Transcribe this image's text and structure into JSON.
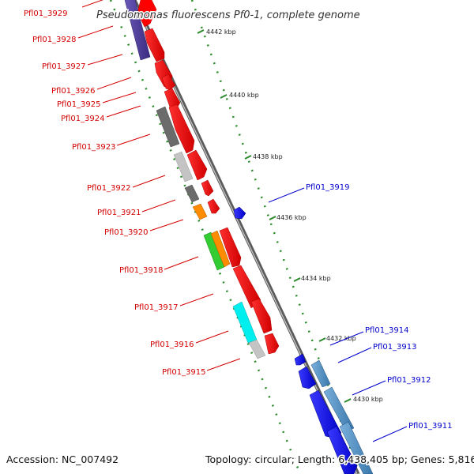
{
  "title": "Pseudomonas fluorescens Pf0-1, complete genome",
  "footer": {
    "accession": "Accession: NC_007492",
    "summary": "Topology: circular; Length: 6,438,405 bp; Genes: 5,816"
  },
  "scale_ticks": [
    {
      "kbp": 4442,
      "label": "4442 kbp"
    },
    {
      "kbp": 4440,
      "label": "4440 kbp"
    },
    {
      "kbp": 4438,
      "label": "4438 kbp"
    },
    {
      "kbp": 4436,
      "label": "4436 kbp"
    },
    {
      "kbp": 4434,
      "label": "4434 kbp"
    },
    {
      "kbp": 4432,
      "label": "4432 kbp"
    },
    {
      "kbp": 4430,
      "label": "4430 kbp"
    }
  ],
  "colors": {
    "forward_label": "#d40000",
    "reverse_label": "#0000cc",
    "backbone": "#7a7a7a",
    "dots": "#2a8a2a"
  },
  "forward_labels": [
    {
      "id": "fwd-3929",
      "text": "Pfl01_3929"
    },
    {
      "id": "fwd-3928",
      "text": "Pfl01_3928"
    },
    {
      "id": "fwd-3927",
      "text": "Pfl01_3927"
    },
    {
      "id": "fwd-3926",
      "text": "Pfl01_3926"
    },
    {
      "id": "fwd-3925",
      "text": "Pfl01_3925"
    },
    {
      "id": "fwd-3924",
      "text": "Pfl01_3924"
    },
    {
      "id": "fwd-3923",
      "text": "Pfl01_3923"
    },
    {
      "id": "fwd-3922",
      "text": "Pfl01_3922"
    },
    {
      "id": "fwd-3921",
      "text": "Pfl01_3921"
    },
    {
      "id": "fwd-3920",
      "text": "Pfl01_3920"
    },
    {
      "id": "fwd-3918",
      "text": "Pfl01_3918"
    },
    {
      "id": "fwd-3917",
      "text": "Pfl01_3917"
    },
    {
      "id": "fwd-3916",
      "text": "Pfl01_3916"
    },
    {
      "id": "fwd-3915",
      "text": "Pfl01_3915"
    }
  ],
  "reverse_labels": [
    {
      "id": "rev-3919",
      "text": "Pfl01_3919"
    },
    {
      "id": "rev-3914",
      "text": "Pfl01_3914"
    },
    {
      "id": "rev-3913",
      "text": "Pfl01_3913"
    },
    {
      "id": "rev-3912",
      "text": "Pfl01_3912"
    },
    {
      "id": "rev-3911",
      "text": "Pfl01_3911"
    }
  ],
  "feature_colors": {
    "red": "#ff0000",
    "navy": "#4b3a96",
    "dark_gray": "#6b6b6b",
    "light_gray": "#c4c4c4",
    "orange": "#ff8c00",
    "green": "#33cc33",
    "cyan": "#00eeee",
    "blue": "#1a1aff",
    "steel_blue": "#4a8ec4"
  }
}
